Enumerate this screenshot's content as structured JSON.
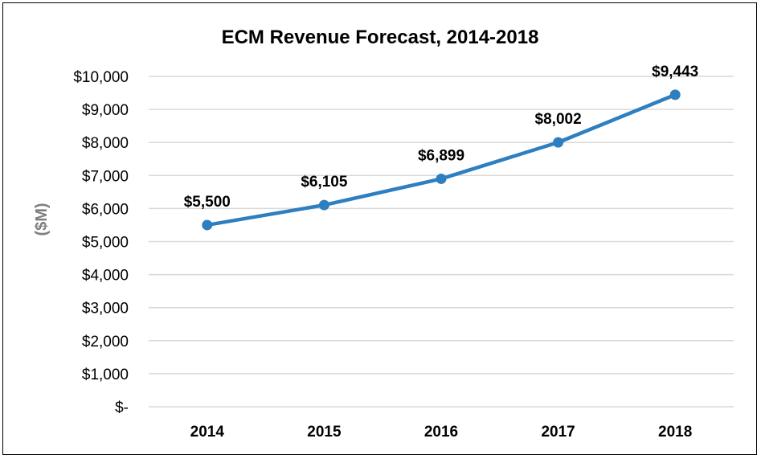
{
  "chart_data": {
    "type": "line",
    "title": "ECM Revenue Forecast, 2014-2018",
    "xlabel": "",
    "ylabel": "($M)",
    "categories": [
      "2014",
      "2015",
      "2016",
      "2017",
      "2018"
    ],
    "series": [
      {
        "values": [
          5500,
          6105,
          6899,
          8002,
          9443
        ]
      }
    ],
    "data_labels": [
      "$5,500",
      "$6,105",
      "$6,899",
      "$8,002",
      "$9,443"
    ],
    "ylim": [
      0,
      10000
    ],
    "yticks": [
      0,
      1000,
      2000,
      3000,
      4000,
      5000,
      6000,
      7000,
      8000,
      9000,
      10000
    ],
    "ytick_labels": [
      "$-",
      "$1,000",
      "$2,000",
      "$3,000",
      "$4,000",
      "$5,000",
      "$6,000",
      "$7,000",
      "$8,000",
      "$9,000",
      "$10,000"
    ],
    "grid": true,
    "legend": "none",
    "colors": {
      "line": "#2e7fc0",
      "grid": "#d9d9d9",
      "ylabel": "#7f7f7f"
    }
  }
}
